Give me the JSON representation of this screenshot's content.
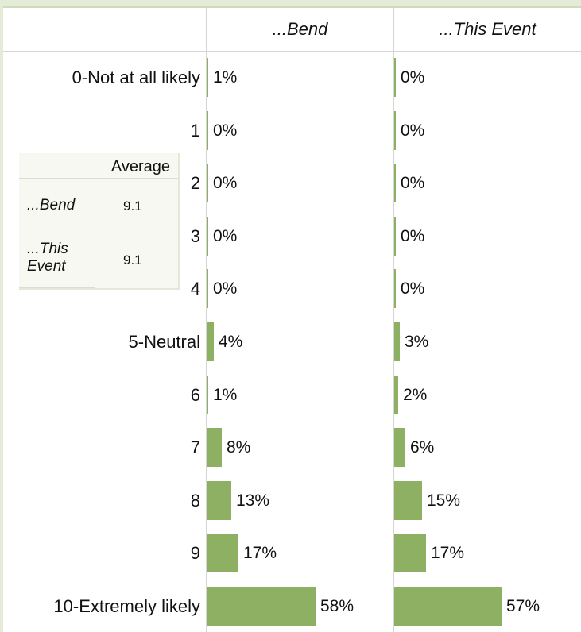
{
  "chart_data": {
    "type": "bar",
    "orientation": "horizontal",
    "categories": [
      "0-Not at all likely",
      "1",
      "2",
      "3",
      "4",
      "5-Neutral",
      "6",
      "7",
      "8",
      "9",
      "10-Extremely likely"
    ],
    "series": [
      {
        "name": "...Bend",
        "values": [
          1,
          0,
          0,
          0,
          0,
          4,
          1,
          8,
          13,
          17,
          58
        ],
        "labels": [
          "1%",
          "0%",
          "0%",
          "0%",
          "0%",
          "4%",
          "1%",
          "8%",
          "13%",
          "17%",
          "58%"
        ]
      },
      {
        "name": "...This Event",
        "values": [
          0,
          0,
          0,
          0,
          0,
          3,
          2,
          6,
          15,
          17,
          57
        ],
        "labels": [
          "0%",
          "0%",
          "0%",
          "0%",
          "0%",
          "3%",
          "2%",
          "6%",
          "15%",
          "17%",
          "57%"
        ]
      }
    ],
    "value_max": 100,
    "bar_color": "#8db063"
  },
  "average_table": {
    "header": "Average",
    "rows": [
      {
        "name": "...Bend",
        "value": "9.1"
      },
      {
        "name": "...This Event",
        "value": "9.1"
      }
    ]
  }
}
